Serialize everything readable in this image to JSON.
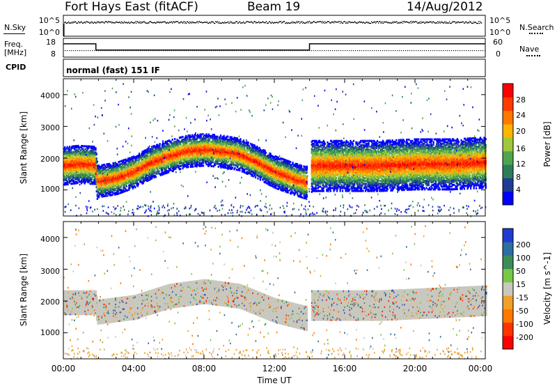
{
  "header": {
    "title": "Fort Hays East (fitACF)",
    "beam": "Beam 19",
    "date": "14/Aug/2012"
  },
  "top_panels": {
    "nsky_label": "N.Sky",
    "nsearch_label": "N.Search",
    "freq_label_line1": "Freq.",
    "freq_label_line2": "[MHz]",
    "nave_label": "Nave",
    "cpid_label": "CPID",
    "noise_ticks_left": [
      "10^5",
      "10^0"
    ],
    "noise_ticks_right": [
      "10^5",
      "10^0"
    ],
    "freq_ticks_left": [
      "18",
      "8"
    ],
    "nave_ticks_right": [
      "60",
      "0"
    ],
    "cpid_text": "normal (fast) 151 IF"
  },
  "panels": {
    "ylabel": "Slant Range [km]",
    "xlabel": "Time UT",
    "x_ticks": [
      "00:00",
      "04:00",
      "08:00",
      "12:00",
      "16:00",
      "20:00",
      "00:00"
    ],
    "y_ticks": [
      "1000",
      "2000",
      "3000",
      "4000"
    ],
    "power_colorbar": {
      "label": "Power [dB]",
      "ticks": [
        "4",
        "8",
        "12",
        "16",
        "20",
        "24",
        "28"
      ],
      "colors": [
        "#0000ff",
        "#1e3c96",
        "#2d7d5a",
        "#4fa54f",
        "#a0c83c",
        "#ffb400",
        "#ff7800",
        "#ff3c00",
        "#ff0000"
      ]
    },
    "velocity_colorbar": {
      "label": "Velocity [m s^-1]",
      "ticks": [
        "200",
        "100",
        "50",
        "15",
        "-15",
        "-50",
        "-100",
        "-200"
      ],
      "colors": [
        "#1e3cd2",
        "#2d6ea0",
        "#3c8c5a",
        "#78c846",
        "#c8c8be",
        "#f0a028",
        "#ff7800",
        "#ff3200",
        "#ff0000"
      ]
    }
  },
  "chart_data": {
    "type": "heatmap",
    "title": "Fort Hays East (fitACF)",
    "subtitle": "Beam 19",
    "date": "14/Aug/2012",
    "xlabel": "Time UT",
    "ylabel": "Slant Range [km]",
    "xlim": [
      0,
      24
    ],
    "ylim": [
      180,
      4500
    ],
    "time_series": {
      "frequency_mhz": [
        {
          "x": 0,
          "y": 14.5
        },
        {
          "x": 1.85,
          "y": 14.5
        },
        {
          "x": 1.85,
          "y": 10.5
        },
        {
          "x": 14.0,
          "y": 10.5
        },
        {
          "x": 14.0,
          "y": 14.5
        },
        {
          "x": 24,
          "y": 14.5
        }
      ],
      "nave": [
        {
          "x": 0,
          "y": 15
        },
        {
          "x": 24,
          "y": 15
        }
      ],
      "noise_sky_level": [
        {
          "x": 0,
          "y": 10000
        },
        {
          "x": 24,
          "y": 10000
        }
      ]
    },
    "series": [
      {
        "name": "Power [dB]",
        "band_center_km": [
          {
            "x": 0.0,
            "y": 1800
          },
          {
            "x": 0.8,
            "y": 1850
          },
          {
            "x": 1.8,
            "y": 1820
          },
          {
            "x": 1.9,
            "y": 1300
          },
          {
            "x": 3.0,
            "y": 1400
          },
          {
            "x": 4.0,
            "y": 1600
          },
          {
            "x": 5.0,
            "y": 1900
          },
          {
            "x": 6.0,
            "y": 2100
          },
          {
            "x": 7.0,
            "y": 2250
          },
          {
            "x": 8.0,
            "y": 2300
          },
          {
            "x": 9.0,
            "y": 2250
          },
          {
            "x": 10.0,
            "y": 2150
          },
          {
            "x": 11.0,
            "y": 1900
          },
          {
            "x": 12.0,
            "y": 1600
          },
          {
            "x": 13.0,
            "y": 1400
          },
          {
            "x": 13.8,
            "y": 1250
          },
          {
            "x": 14.1,
            "y": 1800
          },
          {
            "x": 16.0,
            "y": 1800
          },
          {
            "x": 18.0,
            "y": 1800
          },
          {
            "x": 20.0,
            "y": 1850
          },
          {
            "x": 22.0,
            "y": 1850
          },
          {
            "x": 24.0,
            "y": 1900
          }
        ],
        "peak_power_db": 30
      },
      {
        "name": "Velocity [m s^-1]",
        "dominant_range": [
          -15,
          15
        ],
        "band_center_km": [
          {
            "x": 0.0,
            "y": 2000
          },
          {
            "x": 1.8,
            "y": 2000
          },
          {
            "x": 1.9,
            "y": 1700
          },
          {
            "x": 4.0,
            "y": 1850
          },
          {
            "x": 6.0,
            "y": 2200
          },
          {
            "x": 8.0,
            "y": 2350
          },
          {
            "x": 10.0,
            "y": 2200
          },
          {
            "x": 12.0,
            "y": 1750
          },
          {
            "x": 13.8,
            "y": 1500
          },
          {
            "x": 14.1,
            "y": 1900
          },
          {
            "x": 18.0,
            "y": 1900
          },
          {
            "x": 24.0,
            "y": 2050
          }
        ]
      }
    ]
  }
}
